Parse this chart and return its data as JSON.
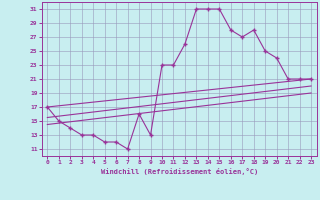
{
  "xlabel": "Windchill (Refroidissement éolien,°C)",
  "ylabel": "",
  "bg_color": "#c8eef0",
  "grid_color": "#9999bb",
  "line_color": "#993399",
  "spine_color": "#993399",
  "xlim": [
    -0.5,
    23.5
  ],
  "ylim": [
    10,
    32
  ],
  "xticks": [
    0,
    1,
    2,
    3,
    4,
    5,
    6,
    7,
    8,
    9,
    10,
    11,
    12,
    13,
    14,
    15,
    16,
    17,
    18,
    19,
    20,
    21,
    22,
    23
  ],
  "yticks": [
    11,
    13,
    15,
    17,
    19,
    21,
    23,
    25,
    27,
    29,
    31
  ],
  "line1_x": [
    0,
    1,
    2,
    3,
    4,
    5,
    6,
    7,
    8,
    9,
    10,
    11,
    12,
    13,
    14,
    15,
    16,
    17,
    18,
    19,
    20,
    21,
    22,
    23
  ],
  "line1_y": [
    17,
    15,
    14,
    13,
    13,
    12,
    12,
    11,
    16,
    13,
    23,
    23,
    26,
    31,
    31,
    31,
    28,
    27,
    28,
    25,
    24,
    21,
    21,
    21
  ],
  "line2_x": [
    0,
    23
  ],
  "line2_y": [
    17,
    21
  ],
  "line3_x": [
    0,
    23
  ],
  "line3_y": [
    15.5,
    20
  ],
  "line4_x": [
    0,
    23
  ],
  "line4_y": [
    14.5,
    19
  ]
}
